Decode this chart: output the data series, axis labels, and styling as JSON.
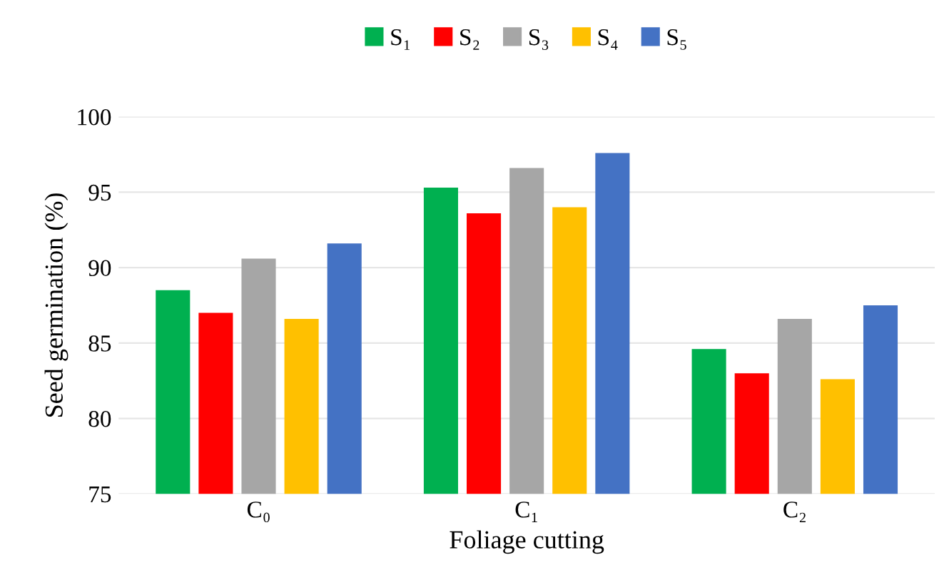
{
  "chart_data": {
    "type": "bar",
    "xlabel": "Foliage cutting",
    "ylabel": "Seed germination (%)",
    "categories": [
      "C₀",
      "C₁",
      "C₂"
    ],
    "series": [
      {
        "name": "S₁",
        "color": "#00b050",
        "values": [
          88.5,
          95.3,
          84.6
        ]
      },
      {
        "name": "S₂",
        "color": "#ff0000",
        "values": [
          87,
          93.6,
          83
        ]
      },
      {
        "name": "S₃",
        "color": "#a6a6a6",
        "values": [
          90.6,
          96.6,
          86.6
        ]
      },
      {
        "name": "S₄",
        "color": "#ffc000",
        "values": [
          86.6,
          94,
          82.6
        ]
      },
      {
        "name": "S₅",
        "color": "#4472c4",
        "values": [
          91.6,
          97.6,
          87.5
        ]
      }
    ],
    "ylim": [
      75,
      100
    ],
    "yticks": [
      75,
      80,
      85,
      90,
      95,
      100
    ],
    "grid": "y",
    "legend": "top"
  }
}
